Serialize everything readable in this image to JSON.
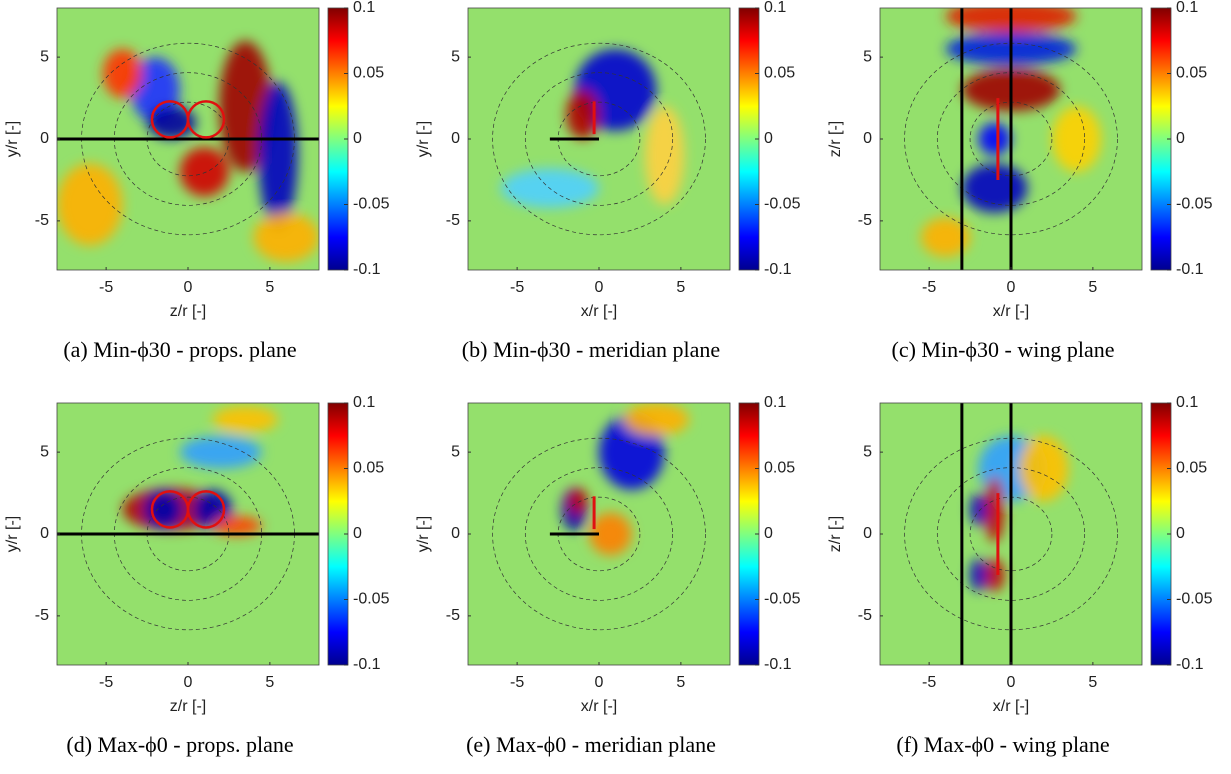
{
  "chart_data": [
    {
      "type": "heatmap",
      "xlabel": "z/r [-]",
      "ylabel": "y/r [-]",
      "caption": "(a) Min-ϕ30 - props. plane",
      "xlim": [
        -8,
        8
      ],
      "ylim": [
        -8,
        8
      ],
      "xticks": [
        -5,
        0,
        5
      ],
      "yticks": [
        -5,
        0,
        5
      ],
      "clim": [
        -0.1,
        0.1
      ],
      "cticks": [
        -0.1,
        -0.05,
        0,
        0.05,
        0.1
      ]
    },
    {
      "type": "heatmap",
      "xlabel": "x/r [-]",
      "ylabel": "y/r [-]",
      "caption": "(b) Min-ϕ30 - meridian plane",
      "xlim": [
        -8,
        8
      ],
      "ylim": [
        -8,
        8
      ],
      "xticks": [
        -5,
        0,
        5
      ],
      "yticks": [
        -5,
        0,
        5
      ],
      "clim": [
        -0.1,
        0.1
      ],
      "cticks": [
        -0.1,
        -0.05,
        0,
        0.05,
        0.1
      ]
    },
    {
      "type": "heatmap",
      "xlabel": "x/r [-]",
      "ylabel": "z/r [-]",
      "caption": "(c) Min-ϕ30 - wing plane",
      "xlim": [
        -8,
        8
      ],
      "ylim": [
        -8,
        8
      ],
      "xticks": [
        -5,
        0,
        5
      ],
      "yticks": [
        -5,
        0,
        5
      ],
      "clim": [
        -0.1,
        0.1
      ],
      "cticks": [
        -0.1,
        -0.05,
        0,
        0.05,
        0.1
      ]
    },
    {
      "type": "heatmap",
      "xlabel": "z/r [-]",
      "ylabel": "y/r [-]",
      "caption": "(d) Max-ϕ0 - props. plane",
      "xlim": [
        -8,
        8
      ],
      "ylim": [
        -8,
        8
      ],
      "xticks": [
        -5,
        0,
        5
      ],
      "yticks": [
        -5,
        0,
        5
      ],
      "clim": [
        -0.1,
        0.1
      ],
      "cticks": [
        -0.1,
        -0.05,
        0,
        0.05,
        0.1
      ]
    },
    {
      "type": "heatmap",
      "xlabel": "x/r [-]",
      "ylabel": "y/r [-]",
      "caption": "(e) Max-ϕ0 - meridian plane",
      "xlim": [
        -8,
        8
      ],
      "ylim": [
        -8,
        8
      ],
      "xticks": [
        -5,
        0,
        5
      ],
      "yticks": [
        -5,
        0,
        5
      ],
      "clim": [
        -0.1,
        0.1
      ],
      "cticks": [
        -0.1,
        -0.05,
        0,
        0.05,
        0.1
      ]
    },
    {
      "type": "heatmap",
      "xlabel": "x/r [-]",
      "ylabel": "z/r [-]",
      "caption": "(f) Max-ϕ0 - wing plane",
      "xlim": [
        -8,
        8
      ],
      "ylim": [
        -8,
        8
      ],
      "xticks": [
        -5,
        0,
        5
      ],
      "yticks": [
        -5,
        0,
        5
      ],
      "clim": [
        -0.1,
        0.1
      ],
      "cticks": [
        -0.1,
        -0.05,
        0,
        0.05,
        0.1
      ]
    }
  ]
}
